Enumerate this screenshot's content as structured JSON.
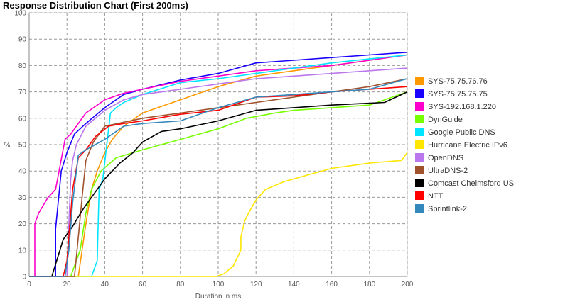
{
  "chart_data": {
    "type": "line",
    "title": "Response Distribution Chart (First 200ms)",
    "xlabel": "Duration in ms",
    "ylabel": "%",
    "xlim": [
      0,
      200
    ],
    "ylim": [
      0,
      100
    ],
    "x_ticks": [
      0,
      20,
      40,
      60,
      80,
      100,
      120,
      140,
      160,
      180,
      200
    ],
    "y_ticks": [
      0,
      10,
      20,
      30,
      40,
      50,
      60,
      70,
      80,
      90,
      100
    ],
    "grid": true,
    "legend_position": "right",
    "series": [
      {
        "name": "SYS-75.75.76.76",
        "color": "#ff9900",
        "points": [
          [
            26,
            0
          ],
          [
            28,
            10
          ],
          [
            30,
            20
          ],
          [
            33,
            33
          ],
          [
            36,
            40
          ],
          [
            40,
            47
          ],
          [
            44,
            52
          ],
          [
            50,
            57
          ],
          [
            60,
            62
          ],
          [
            80,
            67
          ],
          [
            100,
            72
          ],
          [
            120,
            76
          ],
          [
            140,
            78
          ],
          [
            160,
            80
          ],
          [
            180,
            82
          ],
          [
            200,
            84
          ]
        ]
      },
      {
        "name": "SYS-75.75.75.75",
        "color": "#1a00ff",
        "points": [
          [
            14,
            0
          ],
          [
            14,
            18
          ],
          [
            17,
            40
          ],
          [
            20,
            47
          ],
          [
            24,
            54
          ],
          [
            30,
            58
          ],
          [
            40,
            64
          ],
          [
            50,
            69
          ],
          [
            60,
            71
          ],
          [
            80,
            74.5
          ],
          [
            100,
            77
          ],
          [
            120,
            81
          ],
          [
            140,
            82
          ],
          [
            160,
            83
          ],
          [
            180,
            84
          ],
          [
            200,
            85
          ]
        ]
      },
      {
        "name": "SYS-192.168.1.220",
        "color": "#ff00cc",
        "points": [
          [
            3,
            0
          ],
          [
            3,
            20
          ],
          [
            5,
            24
          ],
          [
            10,
            30
          ],
          [
            14,
            33
          ],
          [
            19,
            52
          ],
          [
            22,
            54
          ],
          [
            26,
            58
          ],
          [
            30,
            62
          ],
          [
            40,
            67
          ],
          [
            50,
            69.5
          ],
          [
            60,
            71
          ],
          [
            80,
            74
          ],
          [
            100,
            76
          ],
          [
            120,
            78
          ],
          [
            140,
            79
          ],
          [
            160,
            80
          ],
          [
            180,
            82
          ],
          [
            200,
            84
          ]
        ]
      },
      {
        "name": "DynGuide",
        "color": "#77ff00",
        "points": [
          [
            22,
            0
          ],
          [
            24,
            4
          ],
          [
            27,
            10
          ],
          [
            30,
            24
          ],
          [
            33,
            33
          ],
          [
            38,
            40
          ],
          [
            46,
            45
          ],
          [
            60,
            48
          ],
          [
            80,
            52
          ],
          [
            100,
            56
          ],
          [
            115,
            60
          ],
          [
            130,
            62
          ],
          [
            140,
            63
          ],
          [
            160,
            64
          ],
          [
            180,
            65
          ],
          [
            200,
            70
          ]
        ]
      },
      {
        "name": "Google Public DNS",
        "color": "#00e5ff",
        "points": [
          [
            33,
            0
          ],
          [
            36,
            6
          ],
          [
            37,
            33
          ],
          [
            39,
            37
          ],
          [
            43,
            62
          ],
          [
            46,
            64
          ],
          [
            50,
            66
          ],
          [
            60,
            69
          ],
          [
            80,
            73.5
          ],
          [
            100,
            75
          ],
          [
            120,
            77
          ],
          [
            140,
            79
          ],
          [
            160,
            81
          ],
          [
            180,
            82.5
          ],
          [
            200,
            84
          ]
        ]
      },
      {
        "name": "Hurricane Electric IPv6",
        "color": "#ffe600",
        "points": [
          [
            99,
            0
          ],
          [
            103,
            1
          ],
          [
            108,
            4
          ],
          [
            112,
            10
          ],
          [
            112,
            15
          ],
          [
            114,
            21
          ],
          [
            116,
            24
          ],
          [
            120,
            29
          ],
          [
            125,
            33
          ],
          [
            135,
            36
          ],
          [
            150,
            39
          ],
          [
            160,
            41
          ],
          [
            180,
            43
          ],
          [
            197,
            44
          ],
          [
            200,
            47
          ]
        ]
      },
      {
        "name": "OpenDNS",
        "color": "#bb77ee",
        "points": [
          [
            20,
            0
          ],
          [
            21,
            20
          ],
          [
            22,
            37
          ],
          [
            23,
            44
          ],
          [
            25,
            50
          ],
          [
            30,
            57
          ],
          [
            40,
            63
          ],
          [
            50,
            67
          ],
          [
            60,
            69
          ],
          [
            80,
            71
          ],
          [
            100,
            73
          ],
          [
            120,
            75
          ],
          [
            140,
            76
          ],
          [
            160,
            77
          ],
          [
            180,
            78
          ],
          [
            200,
            79
          ]
        ]
      },
      {
        "name": "UltraDNS-2",
        "color": "#a0522d",
        "points": [
          [
            24,
            0
          ],
          [
            26,
            15
          ],
          [
            28,
            30
          ],
          [
            30,
            44
          ],
          [
            34,
            51
          ],
          [
            40,
            57
          ],
          [
            60,
            60
          ],
          [
            80,
            62
          ],
          [
            100,
            64
          ],
          [
            120,
            66
          ],
          [
            140,
            68
          ],
          [
            160,
            70
          ],
          [
            180,
            72
          ],
          [
            200,
            75
          ]
        ]
      },
      {
        "name": "Comcast Chelmsford US",
        "color": "#000000",
        "points": [
          [
            12,
            0
          ],
          [
            15,
            7
          ],
          [
            18,
            14
          ],
          [
            23,
            19
          ],
          [
            28,
            25
          ],
          [
            34,
            31
          ],
          [
            40,
            37
          ],
          [
            48,
            43
          ],
          [
            55,
            47
          ],
          [
            60,
            51
          ],
          [
            70,
            55
          ],
          [
            80,
            56
          ],
          [
            100,
            59
          ],
          [
            120,
            63
          ],
          [
            140,
            64
          ],
          [
            160,
            65
          ],
          [
            188,
            66
          ],
          [
            200,
            70
          ]
        ]
      },
      {
        "name": "NTT",
        "color": "#ff0000",
        "points": [
          [
            18,
            0
          ],
          [
            20,
            6
          ],
          [
            23,
            33
          ],
          [
            26,
            45
          ],
          [
            30,
            48
          ],
          [
            35,
            53
          ],
          [
            42,
            57
          ],
          [
            50,
            58
          ],
          [
            60,
            59
          ],
          [
            80,
            61.5
          ],
          [
            100,
            63
          ],
          [
            120,
            68
          ],
          [
            140,
            68.5
          ],
          [
            160,
            70
          ],
          [
            180,
            71
          ],
          [
            200,
            72
          ]
        ]
      },
      {
        "name": "Sprintlink-2",
        "color": "#3388bb",
        "points": [
          [
            19,
            0
          ],
          [
            21,
            10
          ],
          [
            23,
            28
          ],
          [
            26,
            46
          ],
          [
            30,
            48
          ],
          [
            40,
            52
          ],
          [
            50,
            57
          ],
          [
            60,
            58
          ],
          [
            80,
            59
          ],
          [
            100,
            64
          ],
          [
            120,
            68
          ],
          [
            140,
            69
          ],
          [
            160,
            70
          ],
          [
            180,
            71
          ],
          [
            200,
            75
          ]
        ]
      }
    ]
  }
}
